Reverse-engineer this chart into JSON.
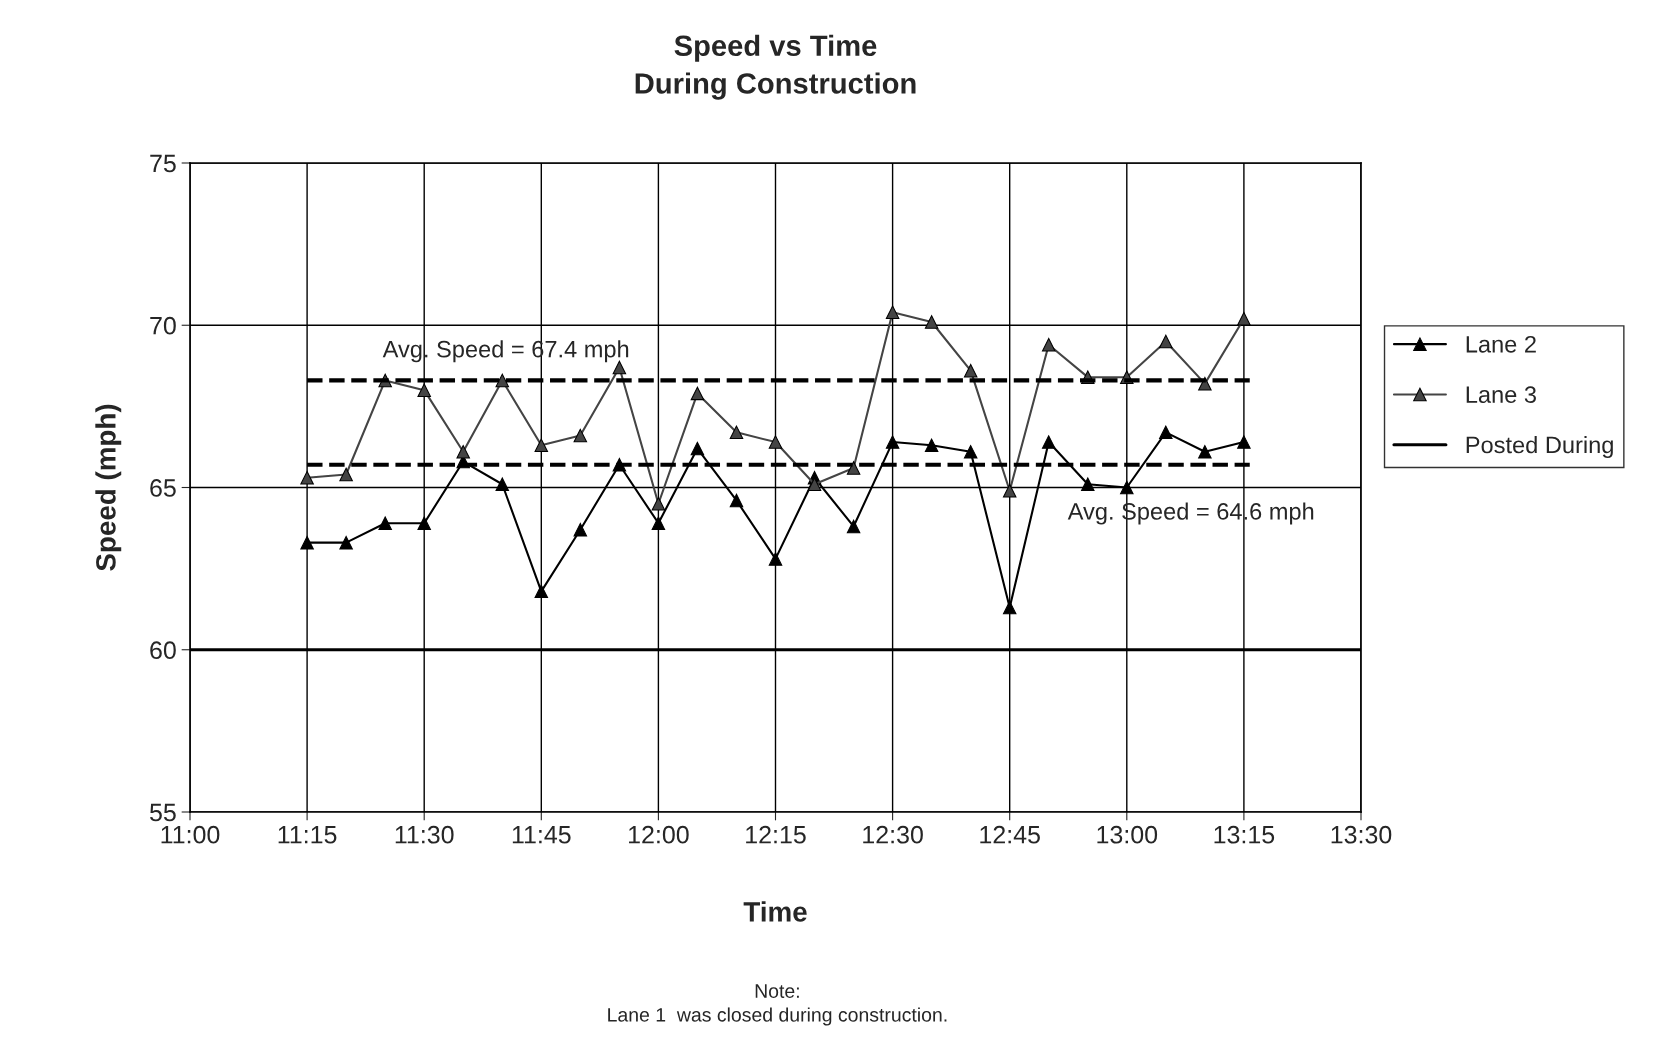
{
  "chart_data": {
    "type": "line",
    "title": "Speed vs Time\nDuring Construction",
    "xlabel": "Time",
    "ylabel": "Speed (mph)",
    "xlim": [
      11,
      13.5
    ],
    "xticks": [
      {
        "value": 11,
        "label": "11:00"
      },
      {
        "value": 11.25,
        "label": "11:15"
      },
      {
        "value": 11.5,
        "label": "11:30"
      },
      {
        "value": 11.75,
        "label": "11:45"
      },
      {
        "value": 12,
        "label": "12:00"
      },
      {
        "value": 12.25,
        "label": "12:15"
      },
      {
        "value": 12.5,
        "label": "12:30"
      },
      {
        "value": 12.75,
        "label": "12:45"
      },
      {
        "value": 13,
        "label": "13:00"
      },
      {
        "value": 13.25,
        "label": "13:15"
      },
      {
        "value": 13.5,
        "label": "13:30"
      }
    ],
    "ylim": [
      55,
      75
    ],
    "yticks": [
      55,
      60,
      65,
      70,
      75
    ],
    "grid": true,
    "legend": "right",
    "marker": "triangle",
    "line_style": "solid",
    "x": [
      11.25,
      11.3333,
      11.4167,
      11.5,
      11.5833,
      11.6667,
      11.75,
      11.8333,
      11.9167,
      12,
      12.0833,
      12.1667,
      12.25,
      12.3333,
      12.4167,
      12.5,
      12.5833,
      12.6667,
      12.75,
      12.8333,
      12.9167,
      13,
      13.0833,
      13.1667,
      13.25
    ],
    "series": [
      {
        "name": "Lane 2",
        "color": "#000000",
        "values": [
          63.3,
          63.3,
          63.9,
          63.9,
          65.8,
          65.1,
          61.8,
          63.7,
          65.7,
          63.9,
          66.2,
          64.6,
          62.8,
          65.3,
          63.8,
          66.4,
          66.3,
          66.1,
          61.3,
          66.4,
          65.1,
          65.0,
          66.7,
          66.1,
          66.4
        ]
      },
      {
        "name": "Lane 3",
        "color": "#444444",
        "values": [
          65.3,
          65.4,
          68.3,
          68.0,
          66.1,
          68.3,
          66.3,
          66.6,
          68.7,
          64.5,
          67.9,
          66.7,
          66.4,
          65.1,
          65.6,
          70.4,
          70.1,
          68.6,
          64.9,
          69.4,
          68.4,
          68.4,
          69.5,
          68.2,
          70.2
        ]
      },
      {
        "name": "Posted During",
        "color": "#000000",
        "marker": "none",
        "x": [
          11,
          13.5
        ],
        "values": [
          60,
          60
        ]
      }
    ],
    "ref_lines": [
      {
        "axis": "y",
        "value": 68.3,
        "line_style": "dashed",
        "color": "#000000"
      },
      {
        "axis": "y",
        "value": 65.7,
        "line_style": "dashed",
        "color": "#000000"
      }
    ],
    "annotations": [
      "Avg. Speed = 67.4 mph",
      "Avg. Speed = 64.6 mph",
      "Note:\nLane 1  was closed during construction."
    ]
  }
}
